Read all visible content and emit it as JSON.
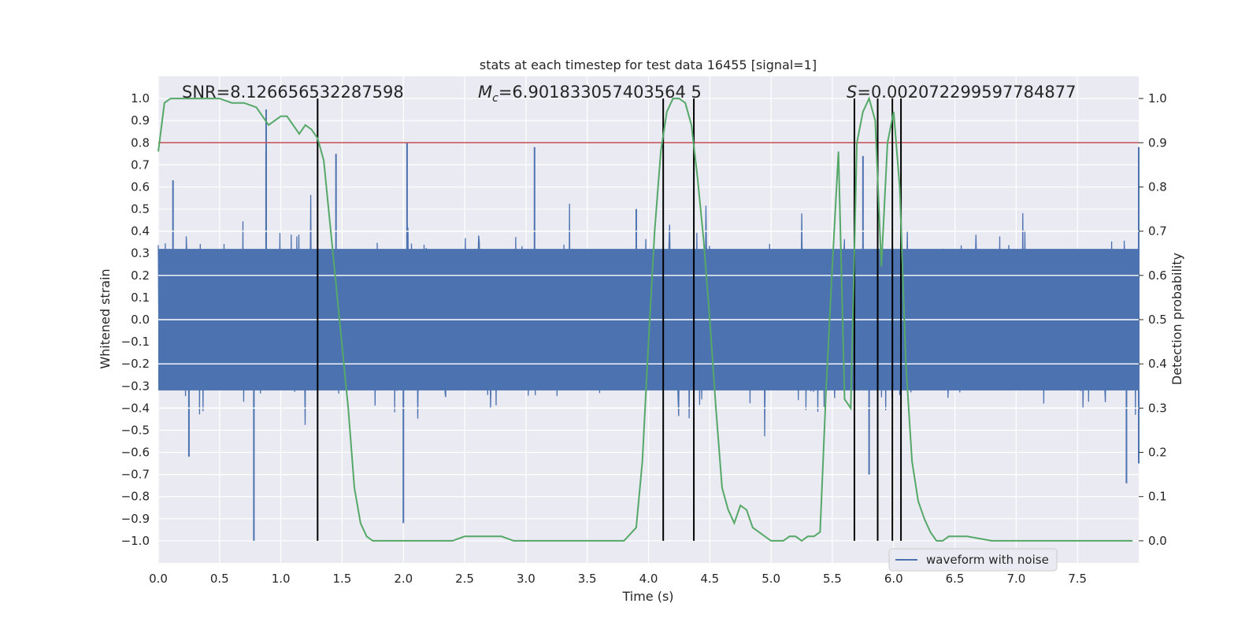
{
  "chart_data": {
    "type": "line",
    "title": "stats at each timestep for test data 16455 [signal=1]",
    "xlabel": "Time (s)",
    "ylabel": "Whitened strain",
    "ylabel_right": "Detection probability",
    "xlim": [
      0.0,
      8.0
    ],
    "ylim": [
      -1.1,
      1.1
    ],
    "ylim_right": [
      -0.05,
      1.05
    ],
    "xticks": [
      "0.0",
      "0.5",
      "1.0",
      "1.5",
      "2.0",
      "2.5",
      "3.0",
      "3.5",
      "4.0",
      "4.5",
      "5.0",
      "5.5",
      "6.0",
      "6.5",
      "7.0",
      "7.5"
    ],
    "xtick_values": [
      0.0,
      0.5,
      1.0,
      1.5,
      2.0,
      2.5,
      3.0,
      3.5,
      4.0,
      4.5,
      5.0,
      5.5,
      6.0,
      6.5,
      7.0,
      7.5
    ],
    "yticks": [
      "1.0",
      "0.9",
      "0.8",
      "0.7",
      "0.6",
      "0.5",
      "0.4",
      "0.3",
      "0.2",
      "0.1",
      "0.0",
      "−0.1",
      "−0.2",
      "−0.3",
      "−0.4",
      "−0.5",
      "−0.6",
      "−0.7",
      "−0.8",
      "−0.9",
      "−1.0"
    ],
    "ytick_values": [
      1.0,
      0.9,
      0.8,
      0.7,
      0.6,
      0.5,
      0.4,
      0.3,
      0.2,
      0.1,
      0.0,
      -0.1,
      -0.2,
      -0.3,
      -0.4,
      -0.5,
      -0.6,
      -0.7,
      -0.8,
      -0.9,
      -1.0
    ],
    "yticks_right": [
      "1.0",
      "0.9",
      "0.8",
      "0.7",
      "0.6",
      "0.5",
      "0.4",
      "0.3",
      "0.2",
      "0.1",
      "0.0"
    ],
    "ytick_right_values": [
      1.0,
      0.9,
      0.8,
      0.7,
      0.6,
      0.5,
      0.4,
      0.3,
      0.2,
      0.1,
      0.0
    ],
    "annotations": {
      "snr": "SNR=8.126656532287598",
      "mc_symbol": "M",
      "mc_sub": "c",
      "mc_value": "=6.901833057403564 5",
      "s_symbol": "S",
      "s_value": "=0.002072299597784877"
    },
    "threshold": {
      "value": 0.9,
      "axis": "right",
      "color": "#c44e52"
    },
    "vertical_markers": [
      1.3,
      4.12,
      4.37,
      5.68,
      5.87,
      5.99,
      6.06
    ],
    "series": [
      {
        "name": "waveform with noise",
        "axis": "left",
        "color": "#4c72b0",
        "style": "noise",
        "envelope_typical": 0.42,
        "spikes": [
          {
            "x": 0.78,
            "y": -1.0
          },
          {
            "x": 0.88,
            "y": 0.95
          },
          {
            "x": 0.88,
            "y": 0.76
          },
          {
            "x": 1.45,
            "y": 0.75
          },
          {
            "x": 2.0,
            "y": -0.92
          },
          {
            "x": 2.03,
            "y": 0.8
          },
          {
            "x": 3.07,
            "y": 0.78
          },
          {
            "x": 3.9,
            "y": 0.5
          },
          {
            "x": 5.75,
            "y": 0.74
          },
          {
            "x": 5.8,
            "y": -0.7
          },
          {
            "x": 7.9,
            "y": -0.74
          },
          {
            "x": 8.0,
            "y": 0.78
          },
          {
            "x": 8.0,
            "y": -0.65
          },
          {
            "x": 0.12,
            "y": 0.63
          },
          {
            "x": 0.25,
            "y": -0.62
          }
        ]
      },
      {
        "name": "",
        "axis": "right",
        "color": "#55a868",
        "style": "line",
        "x": [
          0.0,
          0.05,
          0.1,
          0.2,
          0.3,
          0.4,
          0.5,
          0.6,
          0.7,
          0.8,
          0.85,
          0.9,
          0.95,
          1.0,
          1.05,
          1.1,
          1.15,
          1.2,
          1.25,
          1.3,
          1.35,
          1.4,
          1.45,
          1.5,
          1.55,
          1.6,
          1.65,
          1.7,
          1.75,
          1.8,
          2.0,
          2.2,
          2.4,
          2.5,
          2.6,
          2.7,
          2.8,
          2.9,
          3.0,
          3.2,
          3.4,
          3.6,
          3.8,
          3.9,
          3.95,
          4.0,
          4.05,
          4.1,
          4.15,
          4.2,
          4.25,
          4.3,
          4.35,
          4.4,
          4.45,
          4.5,
          4.55,
          4.6,
          4.65,
          4.7,
          4.75,
          4.8,
          4.85,
          4.9,
          4.95,
          5.0,
          5.05,
          5.1,
          5.15,
          5.2,
          5.25,
          5.3,
          5.35,
          5.4,
          5.45,
          5.5,
          5.55,
          5.6,
          5.65,
          5.7,
          5.75,
          5.8,
          5.85,
          5.9,
          5.95,
          6.0,
          6.05,
          6.1,
          6.15,
          6.2,
          6.25,
          6.3,
          6.35,
          6.4,
          6.45,
          6.5,
          6.6,
          6.8,
          7.0,
          7.2,
          7.5,
          7.8,
          7.95
        ],
        "y": [
          0.88,
          0.99,
          1.0,
          1.0,
          1.0,
          1.0,
          1.0,
          0.99,
          0.99,
          0.98,
          0.96,
          0.94,
          0.95,
          0.96,
          0.96,
          0.94,
          0.92,
          0.94,
          0.93,
          0.91,
          0.86,
          0.72,
          0.58,
          0.44,
          0.3,
          0.12,
          0.04,
          0.01,
          0.0,
          0.0,
          0.0,
          0.0,
          0.0,
          0.01,
          0.01,
          0.01,
          0.01,
          0.0,
          0.0,
          0.0,
          0.0,
          0.0,
          0.0,
          0.03,
          0.18,
          0.45,
          0.7,
          0.88,
          0.97,
          1.0,
          1.0,
          0.99,
          0.94,
          0.82,
          0.68,
          0.5,
          0.3,
          0.12,
          0.07,
          0.04,
          0.08,
          0.07,
          0.03,
          0.02,
          0.01,
          0.0,
          0.0,
          0.0,
          0.01,
          0.01,
          0.0,
          0.01,
          0.01,
          0.02,
          0.35,
          0.62,
          0.88,
          0.32,
          0.3,
          0.9,
          0.97,
          1.0,
          0.95,
          0.62,
          0.9,
          0.97,
          0.8,
          0.4,
          0.18,
          0.09,
          0.05,
          0.02,
          0.0,
          0.0,
          0.01,
          0.01,
          0.01,
          0.0,
          0.0,
          0.0,
          0.0,
          0.0,
          0.0
        ]
      }
    ],
    "legend": {
      "location": "lower-right",
      "entries": [
        "waveform with noise"
      ]
    },
    "grid": true
  }
}
